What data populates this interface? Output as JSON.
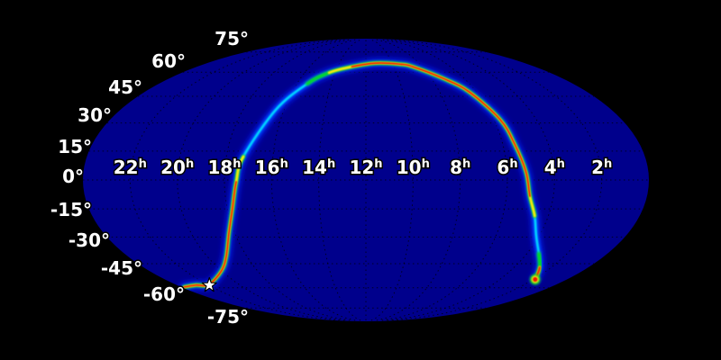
{
  "chart_data": {
    "type": "heatmap",
    "title": "",
    "description": "All-sky Mollweide projection skymap: dark blue sky ellipse on black background with dotted graticule, a rainbow (jet colormap) probability localization ring arching from declination -58 on the left up over +66 and back down to -55 on the right, and a white star marker at the left ring end",
    "projection": "mollweide",
    "background_color": "#000000",
    "map_fill_color": "#00008c",
    "graticule": {
      "style": "dotted",
      "color": "#000000",
      "opacity": 0.75,
      "ra_step_hours": 2,
      "dec_step_degrees": 15
    },
    "ra_ticks": [
      {
        "hours": 22,
        "label": "22",
        "sup": "h"
      },
      {
        "hours": 20,
        "label": "20",
        "sup": "h"
      },
      {
        "hours": 18,
        "label": "18",
        "sup": "h"
      },
      {
        "hours": 16,
        "label": "16",
        "sup": "h"
      },
      {
        "hours": 14,
        "label": "14",
        "sup": "h"
      },
      {
        "hours": 12,
        "label": "12",
        "sup": "h"
      },
      {
        "hours": 10,
        "label": "10",
        "sup": "h"
      },
      {
        "hours": 8,
        "label": "8",
        "sup": "h"
      },
      {
        "hours": 6,
        "label": "6",
        "sup": "h"
      },
      {
        "hours": 4,
        "label": "4",
        "sup": "h"
      },
      {
        "hours": 2,
        "label": "2",
        "sup": "h"
      }
    ],
    "dec_ticks": [
      {
        "degrees": 75,
        "label": "75°"
      },
      {
        "degrees": 60,
        "label": "60°"
      },
      {
        "degrees": 45,
        "label": "45°"
      },
      {
        "degrees": 30,
        "label": "30°"
      },
      {
        "degrees": 15,
        "label": "15°"
      },
      {
        "degrees": 0,
        "label": "0°"
      },
      {
        "degrees": -15,
        "label": "-15°"
      },
      {
        "degrees": -30,
        "label": "-30°"
      },
      {
        "degrees": -45,
        "label": "-45°"
      },
      {
        "degrees": -60,
        "label": "-60°"
      },
      {
        "degrees": -75,
        "label": "-75°"
      }
    ],
    "colormap": {
      "name": "jet-like",
      "low": "#00008c",
      "blue": "#0048ff",
      "cyan": "#00d8ff",
      "green": "#00d41e",
      "yellow": "#ffe80a",
      "red": "#f01800"
    },
    "ring_trace": [
      [
        23.8,
        -59.5
      ],
      [
        22.8,
        -58.3
      ],
      [
        21.9,
        -57.9
      ],
      [
        20.0,
        -49.3
      ],
      [
        19.05,
        -40.9
      ],
      [
        18.25,
        -27.4
      ],
      [
        17.76,
        -14.1
      ],
      [
        17.5,
        -0.9
      ],
      [
        17.27,
        12.1
      ],
      [
        16.4,
        37.3
      ],
      [
        15.4,
        52.6
      ],
      [
        14.4,
        59.7
      ],
      [
        13.0,
        63.8
      ],
      [
        11.2,
        66.4
      ],
      [
        9.4,
        65.5
      ],
      [
        8.68,
        63.8
      ],
      [
        7.3,
        56.1
      ],
      [
        6.4,
        47.7
      ],
      [
        5.7,
        31.8
      ],
      [
        5.48,
        18.7
      ],
      [
        5.2,
        4.2
      ],
      [
        5.0,
        -8.4
      ],
      [
        4.6,
        -18.7
      ],
      [
        4.14,
        -29.3
      ],
      [
        3.4,
        -39.3
      ],
      [
        2.62,
        -47.2
      ],
      [
        1.9,
        -54.6
      ]
    ],
    "ring_layers": [
      {
        "color": "#0018d8",
        "width": 12,
        "blur": 3.0,
        "opacity": 0.9,
        "range": [
          0,
          26
        ]
      },
      {
        "color": "#0048ff",
        "width": 6,
        "blur": 1.6,
        "opacity": 0.95,
        "range": [
          0,
          26
        ]
      },
      {
        "color": "#00d8ff",
        "width": 2.6,
        "blur": 0.9,
        "opacity": 1,
        "range": [
          0,
          26
        ]
      },
      {
        "color": "#00d41e",
        "width": 4.2,
        "blur": 1.2,
        "opacity": 1,
        "range": [
          0,
          8
        ]
      },
      {
        "color": "#00d41e",
        "width": 4.2,
        "blur": 1.2,
        "opacity": 1,
        "range": [
          10,
          22
        ]
      },
      {
        "color": "#00d41e",
        "width": 4.6,
        "blur": 1.2,
        "opacity": 1,
        "range": [
          24,
          26
        ]
      },
      {
        "color": "#ffe80a",
        "width": 2.8,
        "blur": 0.8,
        "opacity": 1,
        "range": [
          0,
          8
        ]
      },
      {
        "color": "#ffe80a",
        "width": 2.8,
        "blur": 0.8,
        "opacity": 1,
        "range": [
          11,
          22
        ]
      },
      {
        "color": "#ffe80a",
        "width": 3.2,
        "blur": 0.9,
        "opacity": 1,
        "range": [
          25,
          26
        ]
      },
      {
        "color": "#f01800",
        "width": 1.7,
        "blur": 0.55,
        "opacity": 1,
        "range": [
          0,
          7
        ]
      },
      {
        "color": "#f01800",
        "width": 1.7,
        "blur": 0.55,
        "opacity": 1,
        "range": [
          12,
          21
        ]
      },
      {
        "color": "#f01800",
        "width": 2.2,
        "blur": 0.7,
        "opacity": 1,
        "range": [
          25,
          26
        ]
      }
    ],
    "end_hotspot": {
      "ra_hours": 1.9,
      "dec_degrees": -54.6,
      "rings": [
        {
          "color": "#00d41e",
          "r": 6.0,
          "blur": 1.3,
          "opacity": 0.9
        },
        {
          "color": "#ffe80a",
          "r": 4.2,
          "blur": 1.0,
          "opacity": 1
        },
        {
          "color": "#f01800",
          "r": 2.6,
          "blur": 0.6,
          "opacity": 1
        }
      ]
    },
    "star_marker": {
      "ra_hours": 21.95,
      "dec_degrees": -58.35,
      "symbol": "star",
      "fill": "#ffffff",
      "outline": "#000000"
    }
  }
}
